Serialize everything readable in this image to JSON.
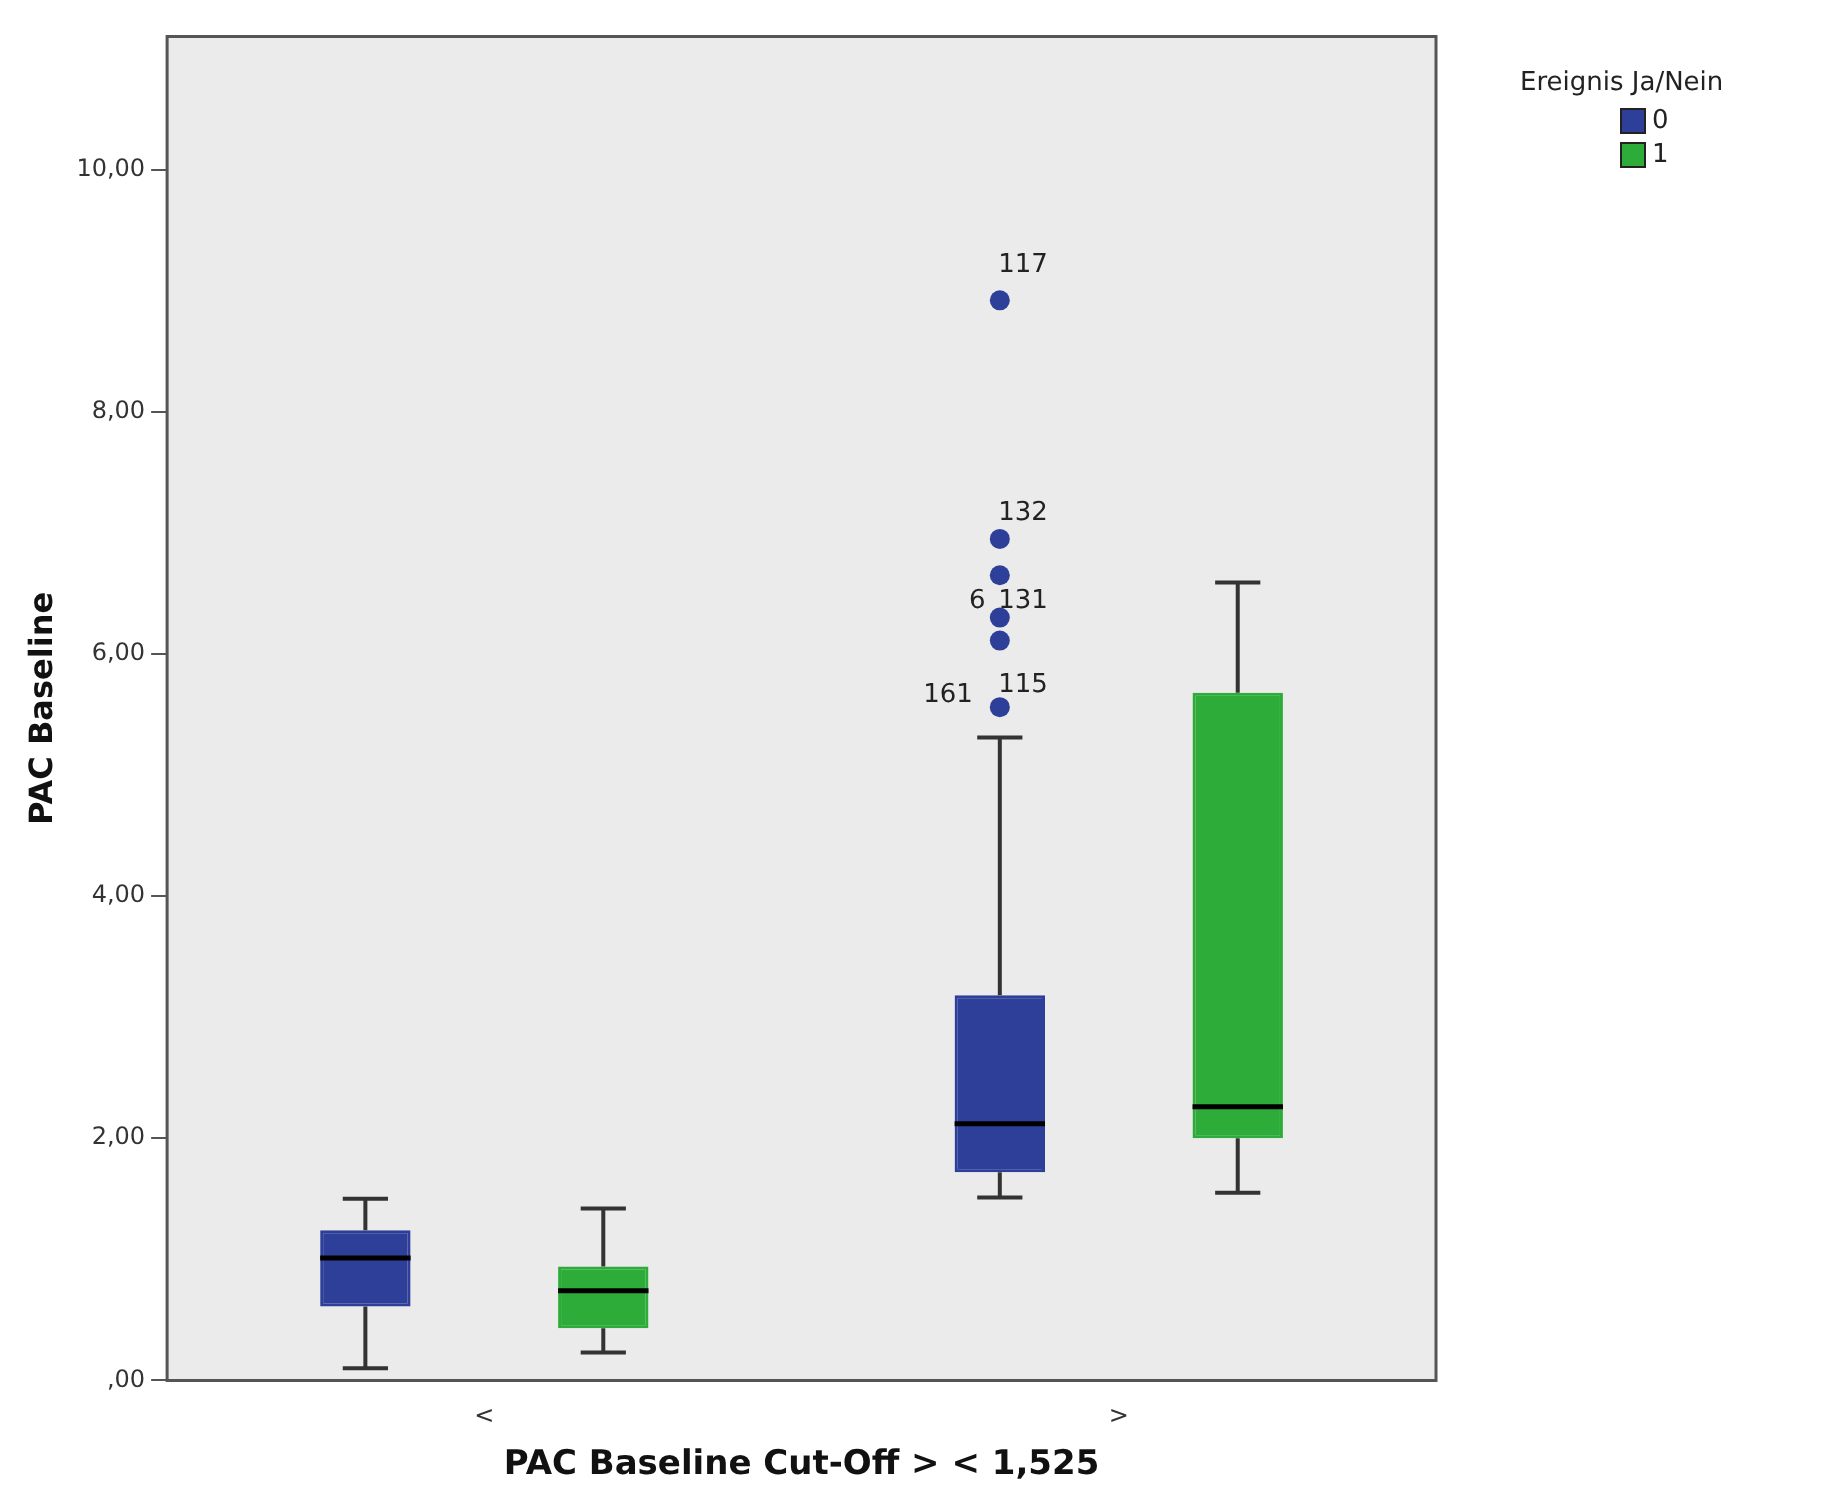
{
  "chart_data": {
    "type": "box",
    "xlabel": "PAC Baseline Cut-Off > < 1,525",
    "ylabel": "PAC Baseline",
    "legend_title": "Ereignis Ja/Nein",
    "categories": [
      "<",
      ">"
    ],
    "ylim": [
      0,
      11.1
    ],
    "yticks": [
      {
        "value": 0,
        "label": ",00"
      },
      {
        "value": 2,
        "label": "2,00"
      },
      {
        "value": 4,
        "label": "4,00"
      },
      {
        "value": 6,
        "label": "6,00"
      },
      {
        "value": 8,
        "label": "8,00"
      },
      {
        "value": 10,
        "label": "10,00"
      }
    ],
    "grid": false,
    "legend": "top right",
    "series": [
      {
        "name": "0",
        "color": "#2e3f99",
        "boxes": [
          {
            "low": 0.1,
            "q1": 0.61,
            "median": 1.01,
            "q3": 1.24,
            "high": 1.5
          },
          {
            "low": 1.51,
            "q1": 1.72,
            "median": 2.12,
            "q3": 3.18,
            "high": 5.31,
            "outliers": [
              5.56,
              6.11,
              6.3,
              6.65,
              6.95,
              8.92
            ]
          }
        ]
      },
      {
        "name": "1",
        "color": "#2eac3a",
        "boxes": [
          {
            "low": 0.23,
            "q1": 0.43,
            "median": 0.74,
            "q3": 0.94,
            "high": 1.42
          },
          {
            "low": 1.55,
            "q1": 2.0,
            "median": 2.26,
            "q3": 5.68,
            "high": 6.59
          }
        ]
      }
    ],
    "annotations": [
      "117",
      "132",
      "6",
      "131",
      "161",
      "115"
    ]
  }
}
